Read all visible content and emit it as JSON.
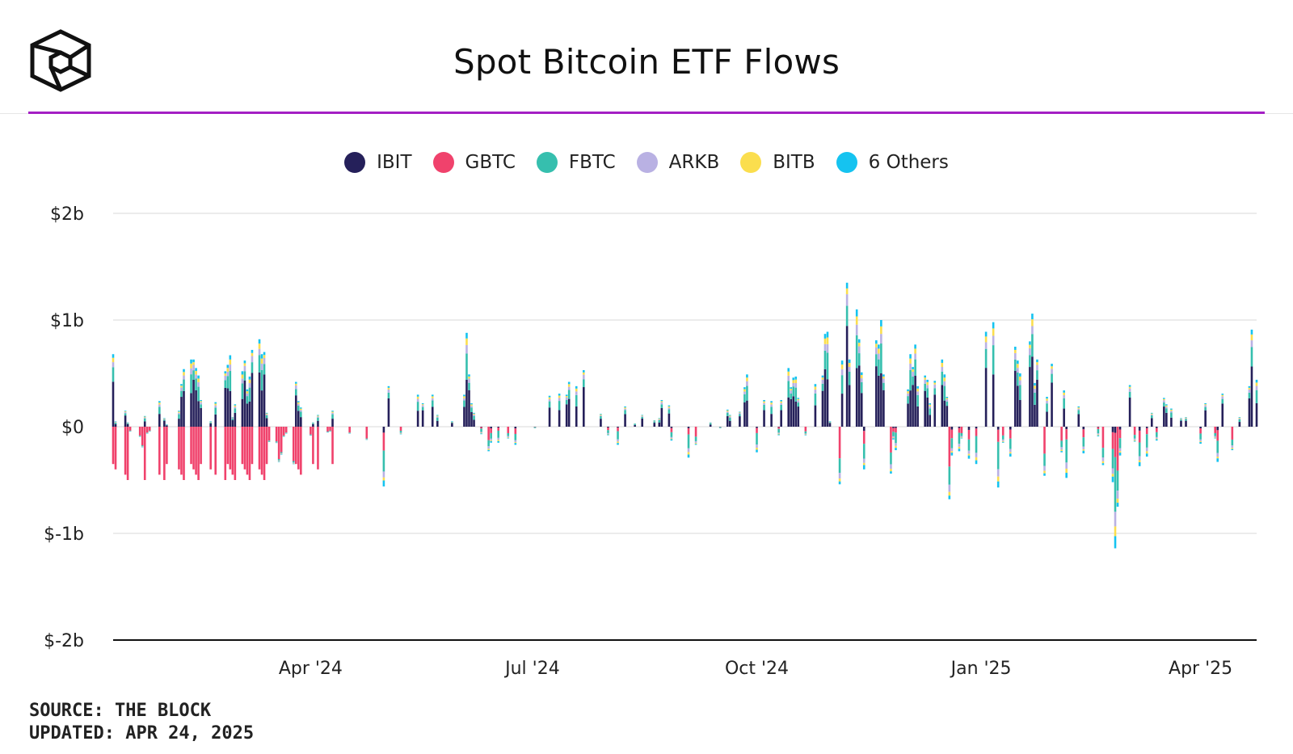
{
  "header": {
    "title": "Spot Bitcoin ETF Flows"
  },
  "source": {
    "line1": "SOURCE: THE BLOCK",
    "line2": "UPDATED: APR 24, 2025"
  },
  "colors": {
    "accent": "#a41fc4",
    "IBIT": "#25205a",
    "GBTC": "#f0426c",
    "FBTC": "#36bfae",
    "ARKB": "#b9b1e3",
    "BITB": "#fbde4e",
    "Others": "#15c3f0"
  },
  "chart_data": {
    "type": "bar",
    "stacked": true,
    "title": "Spot Bitcoin ETF Flows",
    "xlabel": "",
    "ylabel": "",
    "ylim": [
      -2,
      2
    ],
    "y_unit": "billion USD",
    "y_ticks": [
      {
        "value": 2,
        "label": "$2b"
      },
      {
        "value": 1,
        "label": "$1b"
      },
      {
        "value": 0,
        "label": "$0"
      },
      {
        "value": -1,
        "label": "$-1b"
      },
      {
        "value": -2,
        "label": "$-2b"
      }
    ],
    "x_range": [
      "2024-01-11",
      "2025-04-24"
    ],
    "x_ticks": [
      {
        "date": "2024-04-01",
        "label": "Apr '24"
      },
      {
        "date": "2024-07-01",
        "label": "Jul '24"
      },
      {
        "date": "2024-10-01",
        "label": "Oct '24"
      },
      {
        "date": "2025-01-01",
        "label": "Jan '25"
      },
      {
        "date": "2025-04-01",
        "label": "Apr '25"
      }
    ],
    "legend_position": "top",
    "grid": true,
    "series": [
      {
        "name": "IBIT",
        "color": "#25205a"
      },
      {
        "name": "GBTC",
        "color": "#f0426c"
      },
      {
        "name": "FBTC",
        "color": "#36bfae"
      },
      {
        "name": "ARKB",
        "color": "#b9b1e3"
      },
      {
        "name": "BITB",
        "color": "#fbde4e"
      },
      {
        "name": "6 Others",
        "color": "#15c3f0"
      }
    ],
    "daily_net_flows_approx": [
      {
        "date": "2024-01-11",
        "net": 0.68
      },
      {
        "date": "2024-01-12",
        "net": 0.05
      },
      {
        "date": "2024-01-16",
        "net": 0.15
      },
      {
        "date": "2024-01-17",
        "net": 0.04
      },
      {
        "date": "2024-01-18",
        "net": -0.04
      },
      {
        "date": "2024-01-22",
        "net": -0.09
      },
      {
        "date": "2024-01-23",
        "net": -0.19
      },
      {
        "date": "2024-01-24",
        "net": 0.1
      },
      {
        "date": "2024-01-25",
        "net": -0.06
      },
      {
        "date": "2024-01-26",
        "net": -0.04
      },
      {
        "date": "2024-01-30",
        "net": 0.24
      },
      {
        "date": "2024-02-01",
        "net": 0.08
      },
      {
        "date": "2024-02-02",
        "net": 0.02
      },
      {
        "date": "2024-02-07",
        "net": 0.15
      },
      {
        "date": "2024-02-08",
        "net": 0.4
      },
      {
        "date": "2024-02-09",
        "net": 0.54
      },
      {
        "date": "2024-02-12",
        "net": 0.63
      },
      {
        "date": "2024-02-13",
        "net": 0.63
      },
      {
        "date": "2024-02-14",
        "net": 0.55
      },
      {
        "date": "2024-02-15",
        "net": 0.48
      },
      {
        "date": "2024-02-16",
        "net": 0.25
      },
      {
        "date": "2024-02-20",
        "net": 0.05
      },
      {
        "date": "2024-02-22",
        "net": 0.23
      },
      {
        "date": "2024-02-26",
        "net": 0.52
      },
      {
        "date": "2024-02-27",
        "net": 0.58
      },
      {
        "date": "2024-02-28",
        "net": 0.67
      },
      {
        "date": "2024-02-29",
        "net": 0.09
      },
      {
        "date": "2024-03-01",
        "net": 0.21
      },
      {
        "date": "2024-03-04",
        "net": 0.52
      },
      {
        "date": "2024-03-05",
        "net": 0.62
      },
      {
        "date": "2024-03-06",
        "net": 0.35
      },
      {
        "date": "2024-03-07",
        "net": 0.47
      },
      {
        "date": "2024-03-08",
        "net": 0.72
      },
      {
        "date": "2024-03-11",
        "net": 0.82
      },
      {
        "date": "2024-03-12",
        "net": 0.68
      },
      {
        "date": "2024-03-13",
        "net": 0.7
      },
      {
        "date": "2024-03-14",
        "net": 0.13
      },
      {
        "date": "2024-03-15",
        "net": -0.14
      },
      {
        "date": "2024-03-18",
        "net": -0.15
      },
      {
        "date": "2024-03-19",
        "net": -0.33
      },
      {
        "date": "2024-03-20",
        "net": -0.26
      },
      {
        "date": "2024-03-21",
        "net": -0.09
      },
      {
        "date": "2024-03-22",
        "net": -0.06
      },
      {
        "date": "2024-03-25",
        "net": -0.35
      },
      {
        "date": "2024-03-26",
        "net": 0.42
      },
      {
        "date": "2024-03-27",
        "net": 0.24
      },
      {
        "date": "2024-03-28",
        "net": 0.18
      },
      {
        "date": "2024-04-01",
        "net": -0.08
      },
      {
        "date": "2024-04-02",
        "net": 0.04
      },
      {
        "date": "2024-04-04",
        "net": 0.11
      },
      {
        "date": "2024-04-08",
        "net": -0.05
      },
      {
        "date": "2024-04-09",
        "net": -0.04
      },
      {
        "date": "2024-04-10",
        "net": 0.15
      },
      {
        "date": "2024-04-17",
        "net": -0.06
      },
      {
        "date": "2024-04-24",
        "net": -0.12
      },
      {
        "date": "2024-05-01",
        "net": -0.56
      },
      {
        "date": "2024-05-03",
        "net": 0.38
      },
      {
        "date": "2024-05-08",
        "net": -0.07
      },
      {
        "date": "2024-05-15",
        "net": 0.3
      },
      {
        "date": "2024-05-17",
        "net": 0.22
      },
      {
        "date": "2024-05-21",
        "net": 0.3
      },
      {
        "date": "2024-05-23",
        "net": 0.11
      },
      {
        "date": "2024-05-29",
        "net": 0.05
      },
      {
        "date": "2024-06-03",
        "net": 0.3
      },
      {
        "date": "2024-06-04",
        "net": 0.88
      },
      {
        "date": "2024-06-05",
        "net": 0.49
      },
      {
        "date": "2024-06-06",
        "net": 0.22
      },
      {
        "date": "2024-06-07",
        "net": 0.13
      },
      {
        "date": "2024-06-10",
        "net": -0.07
      },
      {
        "date": "2024-06-13",
        "net": -0.23
      },
      {
        "date": "2024-06-14",
        "net": -0.15
      },
      {
        "date": "2024-06-17",
        "net": -0.15
      },
      {
        "date": "2024-06-21",
        "net": -0.11
      },
      {
        "date": "2024-06-24",
        "net": -0.17
      },
      {
        "date": "2024-07-02",
        "net": -0.01
      },
      {
        "date": "2024-07-08",
        "net": 0.29
      },
      {
        "date": "2024-07-12",
        "net": 0.31
      },
      {
        "date": "2024-07-15",
        "net": 0.3
      },
      {
        "date": "2024-07-16",
        "net": 0.42
      },
      {
        "date": "2024-07-19",
        "net": 0.38
      },
      {
        "date": "2024-07-22",
        "net": 0.53
      },
      {
        "date": "2024-07-29",
        "net": 0.12
      },
      {
        "date": "2024-08-01",
        "net": -0.08
      },
      {
        "date": "2024-08-05",
        "net": -0.17
      },
      {
        "date": "2024-08-08",
        "net": 0.19
      },
      {
        "date": "2024-08-12",
        "net": 0.03
      },
      {
        "date": "2024-08-15",
        "net": 0.11
      },
      {
        "date": "2024-08-20",
        "net": 0.06
      },
      {
        "date": "2024-08-22",
        "net": 0.08
      },
      {
        "date": "2024-08-23",
        "net": 0.25
      },
      {
        "date": "2024-08-26",
        "net": 0.2
      },
      {
        "date": "2024-08-27",
        "net": -0.13
      },
      {
        "date": "2024-09-03",
        "net": -0.29
      },
      {
        "date": "2024-09-06",
        "net": -0.17
      },
      {
        "date": "2024-09-12",
        "net": 0.04
      },
      {
        "date": "2024-09-16",
        "net": -0.01
      },
      {
        "date": "2024-09-19",
        "net": 0.16
      },
      {
        "date": "2024-09-20",
        "net": 0.11
      },
      {
        "date": "2024-09-24",
        "net": 0.14
      },
      {
        "date": "2024-09-26",
        "net": 0.37
      },
      {
        "date": "2024-09-27",
        "net": 0.49
      },
      {
        "date": "2024-10-01",
        "net": -0.24
      },
      {
        "date": "2024-10-04",
        "net": 0.25
      },
      {
        "date": "2024-10-07",
        "net": 0.24
      },
      {
        "date": "2024-10-10",
        "net": -0.08
      },
      {
        "date": "2024-10-11",
        "net": 0.25
      },
      {
        "date": "2024-10-14",
        "net": 0.55
      },
      {
        "date": "2024-10-15",
        "net": 0.37
      },
      {
        "date": "2024-10-16",
        "net": 0.46
      },
      {
        "date": "2024-10-17",
        "net": 0.47
      },
      {
        "date": "2024-10-18",
        "net": 0.27
      },
      {
        "date": "2024-10-21",
        "net": -0.08
      },
      {
        "date": "2024-10-25",
        "net": 0.4
      },
      {
        "date": "2024-10-28",
        "net": 0.48
      },
      {
        "date": "2024-10-29",
        "net": 0.87
      },
      {
        "date": "2024-10-30",
        "net": 0.89
      },
      {
        "date": "2024-10-31",
        "net": 0.05
      },
      {
        "date": "2024-11-04",
        "net": -0.54
      },
      {
        "date": "2024-11-05",
        "net": 0.62
      },
      {
        "date": "2024-11-07",
        "net": 1.35
      },
      {
        "date": "2024-11-08",
        "net": 0.63
      },
      {
        "date": "2024-11-11",
        "net": 1.1
      },
      {
        "date": "2024-11-12",
        "net": 0.82
      },
      {
        "date": "2024-11-13",
        "net": 0.51
      },
      {
        "date": "2024-11-14",
        "net": -0.4
      },
      {
        "date": "2024-11-19",
        "net": 0.81
      },
      {
        "date": "2024-11-20",
        "net": 0.77
      },
      {
        "date": "2024-11-21",
        "net": 1.0
      },
      {
        "date": "2024-11-22",
        "net": 0.49
      },
      {
        "date": "2024-11-25",
        "net": -0.44
      },
      {
        "date": "2024-11-26",
        "net": -0.12
      },
      {
        "date": "2024-11-27",
        "net": -0.22
      },
      {
        "date": "2024-12-02",
        "net": 0.35
      },
      {
        "date": "2024-12-03",
        "net": 0.68
      },
      {
        "date": "2024-12-04",
        "net": 0.56
      },
      {
        "date": "2024-12-05",
        "net": 0.77
      },
      {
        "date": "2024-12-06",
        "net": 0.38
      },
      {
        "date": "2024-12-09",
        "net": 0.48
      },
      {
        "date": "2024-12-10",
        "net": 0.44
      },
      {
        "date": "2024-12-11",
        "net": 0.22
      },
      {
        "date": "2024-12-13",
        "net": 0.43
      },
      {
        "date": "2024-12-16",
        "net": 0.63
      },
      {
        "date": "2024-12-17",
        "net": 0.49
      },
      {
        "date": "2024-12-18",
        "net": 0.28
      },
      {
        "date": "2024-12-19",
        "net": -0.68
      },
      {
        "date": "2024-12-20",
        "net": -0.27
      },
      {
        "date": "2024-12-23",
        "net": -0.23
      },
      {
        "date": "2024-12-24",
        "net": -0.11
      },
      {
        "date": "2024-12-27",
        "net": -0.3
      },
      {
        "date": "2024-12-30",
        "net": -0.35
      },
      {
        "date": "2025-01-03",
        "net": 0.89
      },
      {
        "date": "2025-01-06",
        "net": 0.98
      },
      {
        "date": "2025-01-08",
        "net": -0.57
      },
      {
        "date": "2025-01-10",
        "net": -0.15
      },
      {
        "date": "2025-01-13",
        "net": -0.28
      },
      {
        "date": "2025-01-15",
        "net": 0.75
      },
      {
        "date": "2025-01-16",
        "net": 0.62
      },
      {
        "date": "2025-01-17",
        "net": 0.5
      },
      {
        "date": "2025-01-21",
        "net": 0.8
      },
      {
        "date": "2025-01-22",
        "net": 1.06
      },
      {
        "date": "2025-01-23",
        "net": 0.41
      },
      {
        "date": "2025-01-24",
        "net": 0.63
      },
      {
        "date": "2025-01-27",
        "net": -0.46
      },
      {
        "date": "2025-01-28",
        "net": 0.28
      },
      {
        "date": "2025-01-30",
        "net": 0.59
      },
      {
        "date": "2025-02-03",
        "net": -0.24
      },
      {
        "date": "2025-02-04",
        "net": 0.34
      },
      {
        "date": "2025-02-05",
        "net": -0.48
      },
      {
        "date": "2025-02-10",
        "net": 0.19
      },
      {
        "date": "2025-02-12",
        "net": -0.25
      },
      {
        "date": "2025-02-18",
        "net": -0.09
      },
      {
        "date": "2025-02-20",
        "net": -0.36
      },
      {
        "date": "2025-02-24",
        "net": -0.52
      },
      {
        "date": "2025-02-25",
        "net": -1.14
      },
      {
        "date": "2025-02-26",
        "net": -0.75
      },
      {
        "date": "2025-02-27",
        "net": -0.27
      },
      {
        "date": "2025-03-03",
        "net": 0.39
      },
      {
        "date": "2025-03-05",
        "net": -0.14
      },
      {
        "date": "2025-03-07",
        "net": -0.37
      },
      {
        "date": "2025-03-10",
        "net": -0.28
      },
      {
        "date": "2025-03-12",
        "net": 0.13
      },
      {
        "date": "2025-03-14",
        "net": -0.13
      },
      {
        "date": "2025-03-17",
        "net": 0.27
      },
      {
        "date": "2025-03-18",
        "net": 0.21
      },
      {
        "date": "2025-03-20",
        "net": 0.17
      },
      {
        "date": "2025-03-24",
        "net": 0.08
      },
      {
        "date": "2025-03-26",
        "net": 0.09
      },
      {
        "date": "2025-04-01",
        "net": -0.16
      },
      {
        "date": "2025-04-03",
        "net": 0.22
      },
      {
        "date": "2025-04-07",
        "net": -0.11
      },
      {
        "date": "2025-04-08",
        "net": -0.33
      },
      {
        "date": "2025-04-10",
        "net": 0.31
      },
      {
        "date": "2025-04-14",
        "net": -0.22
      },
      {
        "date": "2025-04-17",
        "net": 0.09
      },
      {
        "date": "2025-04-21",
        "net": 0.38
      },
      {
        "date": "2025-04-22",
        "net": 0.91
      },
      {
        "date": "2025-04-24",
        "net": 0.44
      }
    ]
  }
}
